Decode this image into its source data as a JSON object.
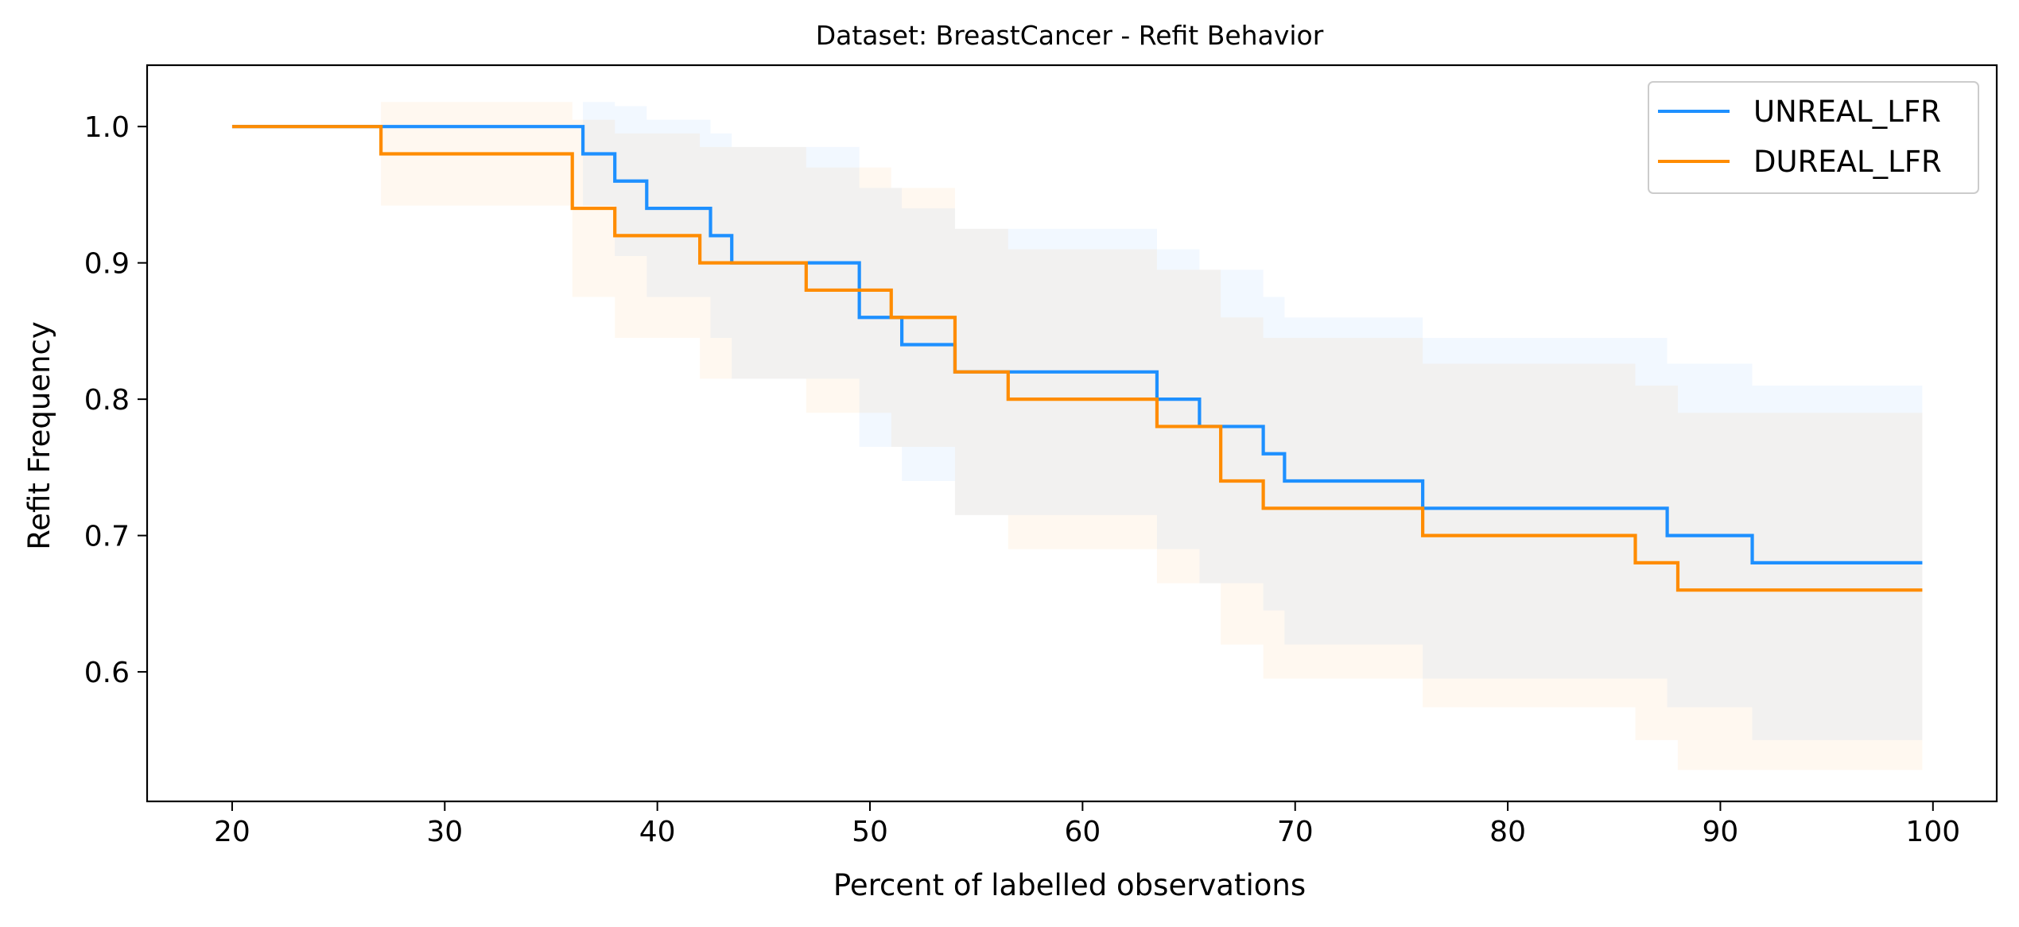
{
  "chart_data": {
    "type": "line",
    "title": "Dataset: BreastCancer - Refit Behavior",
    "xlabel": "Percent of labelled observations",
    "ylabel": "Refit Frequency",
    "xlim": [
      16,
      103
    ],
    "ylim": [
      0.505,
      1.045
    ],
    "xticks": [
      20,
      30,
      40,
      50,
      60,
      70,
      80,
      90,
      100
    ],
    "yticks": [
      0.6,
      0.7,
      0.8,
      0.9,
      1.0
    ],
    "xtick_labels": [
      "20",
      "30",
      "40",
      "50",
      "60",
      "70",
      "80",
      "90",
      "100"
    ],
    "ytick_labels": [
      "0.6",
      "0.7",
      "0.8",
      "0.9",
      "1.0"
    ],
    "grid": false,
    "legend_position": "top-right",
    "series": [
      {
        "name": "UNREAL_LFR",
        "color": "#1E90FF",
        "step": true,
        "points": [
          [
            20,
            1.0
          ],
          [
            36.5,
            0.98
          ],
          [
            38,
            0.96
          ],
          [
            39.5,
            0.94
          ],
          [
            42.5,
            0.92
          ],
          [
            43.5,
            0.9
          ],
          [
            49.5,
            0.86
          ],
          [
            51.5,
            0.84
          ],
          [
            54,
            0.82
          ],
          [
            63.5,
            0.8
          ],
          [
            65.5,
            0.78
          ],
          [
            68.5,
            0.76
          ],
          [
            69.5,
            0.74
          ],
          [
            76,
            0.72
          ],
          [
            87.5,
            0.7
          ],
          [
            91.5,
            0.68
          ],
          [
            99.5,
            0.68
          ]
        ],
        "band": [
          [
            20,
            1.0,
            1.0
          ],
          [
            36.5,
            1.018,
            0.942
          ],
          [
            38,
            1.015,
            0.905
          ],
          [
            39.5,
            1.005,
            0.875
          ],
          [
            42.5,
            0.995,
            0.845
          ],
          [
            43.5,
            0.985,
            0.815
          ],
          [
            49.5,
            0.955,
            0.765
          ],
          [
            51.5,
            0.94,
            0.74
          ],
          [
            54,
            0.925,
            0.715
          ],
          [
            63.5,
            0.91,
            0.69
          ],
          [
            65.5,
            0.895,
            0.665
          ],
          [
            68.5,
            0.875,
            0.645
          ],
          [
            69.5,
            0.86,
            0.62
          ],
          [
            76,
            0.845,
            0.595
          ],
          [
            87.5,
            0.826,
            0.574
          ],
          [
            91.5,
            0.81,
            0.55
          ],
          [
            99.5,
            0.81,
            0.55
          ]
        ]
      },
      {
        "name": "DUREAL_LFR",
        "color": "#FF8C00",
        "step": true,
        "points": [
          [
            20,
            1.0
          ],
          [
            27,
            0.98
          ],
          [
            36,
            0.94
          ],
          [
            38,
            0.92
          ],
          [
            42,
            0.9
          ],
          [
            47,
            0.88
          ],
          [
            51,
            0.86
          ],
          [
            54,
            0.82
          ],
          [
            56.5,
            0.8
          ],
          [
            63.5,
            0.78
          ],
          [
            66.5,
            0.74
          ],
          [
            68.5,
            0.72
          ],
          [
            76,
            0.7
          ],
          [
            86,
            0.68
          ],
          [
            88,
            0.66
          ],
          [
            99.5,
            0.66
          ]
        ],
        "band": [
          [
            20,
            1.0,
            1.0
          ],
          [
            27,
            1.018,
            0.942
          ],
          [
            36,
            1.005,
            0.875
          ],
          [
            38,
            0.995,
            0.845
          ],
          [
            42,
            0.985,
            0.815
          ],
          [
            47,
            0.97,
            0.79
          ],
          [
            51,
            0.955,
            0.765
          ],
          [
            54,
            0.925,
            0.715
          ],
          [
            56.5,
            0.91,
            0.69
          ],
          [
            63.5,
            0.895,
            0.665
          ],
          [
            66.5,
            0.86,
            0.62
          ],
          [
            68.5,
            0.845,
            0.595
          ],
          [
            76,
            0.826,
            0.574
          ],
          [
            86,
            0.81,
            0.55
          ],
          [
            88,
            0.79,
            0.528
          ],
          [
            99.5,
            0.79,
            0.528
          ]
        ]
      }
    ]
  }
}
